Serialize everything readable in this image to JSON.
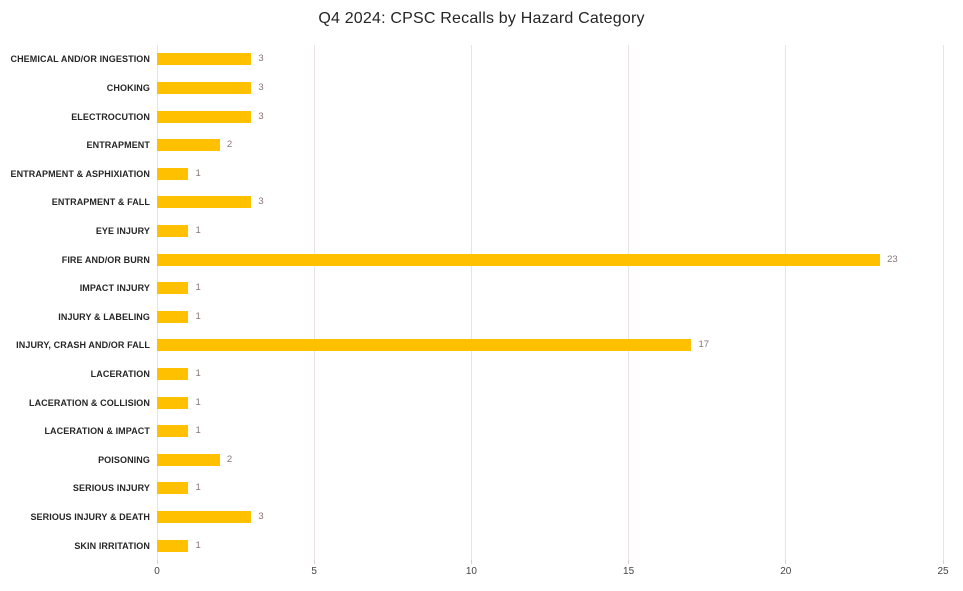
{
  "chart_data": {
    "type": "bar",
    "orientation": "horizontal",
    "title": "Q4 2024: CPSC Recalls by Hazard Category",
    "categories": [
      "CHEMICAL AND/OR INGESTION",
      "CHOKING",
      "ELECTROCUTION",
      "ENTRAPMENT",
      "ENTRAPMENT & ASPHIXIATION",
      "ENTRAPMENT & FALL",
      "EYE INJURY",
      "FIRE AND/OR BURN",
      "IMPACT INJURY",
      "INJURY & LABELING",
      "INJURY, CRASH AND/OR FALL",
      "LACERATION",
      "LACERATION & COLLISION",
      "LACERATION & IMPACT",
      "POISONING",
      "SERIOUS INJURY",
      "SERIOUS INJURY & DEATH",
      "SKIN IRRITATION"
    ],
    "values": [
      3,
      3,
      3,
      2,
      1,
      3,
      1,
      23,
      1,
      1,
      17,
      1,
      1,
      1,
      2,
      1,
      3,
      1
    ],
    "xlabel": "",
    "ylabel": "",
    "xlim": [
      0,
      25
    ],
    "xticks": [
      "0",
      "5",
      "10",
      "15",
      "20",
      "25"
    ],
    "xtick_values": [
      0,
      5,
      10,
      15,
      20,
      25
    ],
    "grid": "vertical",
    "legend": "none",
    "data_labels": "outside-end",
    "colors": {
      "bar": "#FFC000",
      "gridline": "#e9e2e6",
      "value_label": "#8a7575",
      "category_label": "#262626",
      "axis_label": "#444444",
      "title": "#262626"
    }
  }
}
